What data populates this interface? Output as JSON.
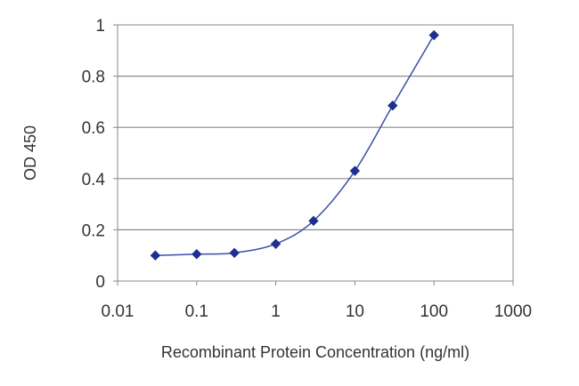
{
  "chart_data": {
    "type": "line",
    "title": "",
    "xlabel": "Recombinant Protein Concentration (ng/ml)",
    "ylabel": "OD 450",
    "x_scale": "log",
    "xlim": [
      0.01,
      1000
    ],
    "ylim": [
      0,
      1
    ],
    "x_ticks": [
      "0.01",
      "0.1",
      "1",
      "10",
      "100",
      "1000"
    ],
    "y_ticks": [
      "0",
      "0.2",
      "0.4",
      "0.6",
      "0.8",
      "1"
    ],
    "grid": "horizontal",
    "legend": "none",
    "series": [
      {
        "x": [
          0.03,
          0.1,
          0.3,
          1,
          3,
          10,
          30,
          100
        ],
        "y": [
          0.1,
          0.105,
          0.11,
          0.145,
          0.235,
          0.43,
          0.685,
          0.96
        ],
        "color": "#1f2f8f",
        "marker": "diamond"
      }
    ]
  }
}
